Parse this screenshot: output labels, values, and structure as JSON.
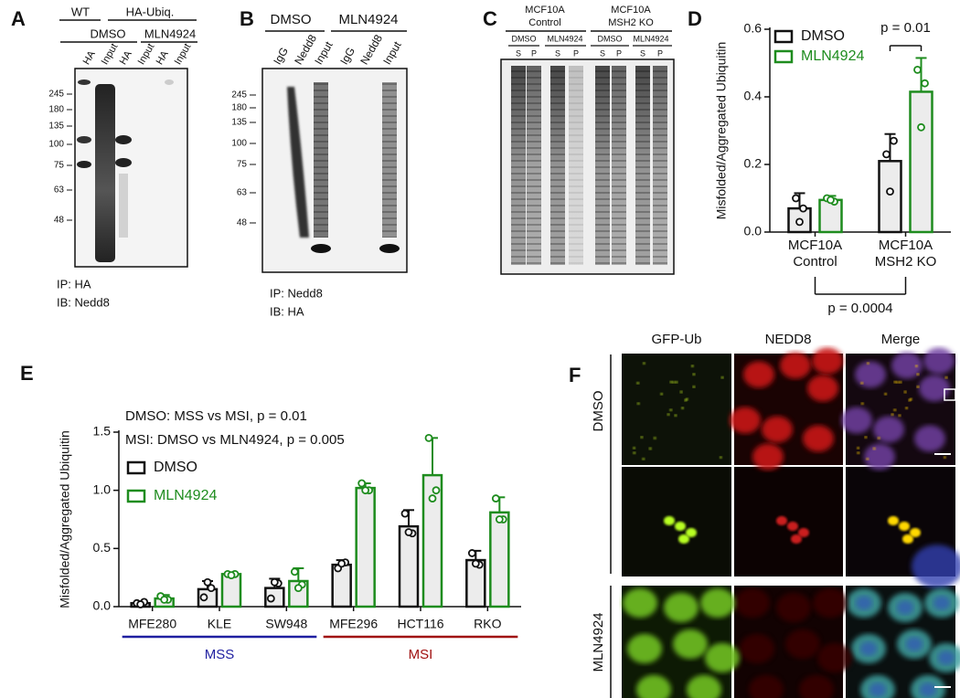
{
  "panels": {
    "letters": [
      "A",
      "B",
      "C",
      "D",
      "E",
      "F"
    ],
    "a": {
      "wt": "WT",
      "ha_ubiq": "HA-Ubiq.",
      "treatments": [
        "DMSO",
        "MLN4924"
      ],
      "lanes": [
        "HA",
        "Input",
        "HA",
        "Input",
        "HA",
        "Input"
      ],
      "markers": [
        "245",
        "180",
        "135",
        "100",
        "75",
        "63",
        "48"
      ],
      "ip": "IP: HA",
      "ib": "IB: Nedd8"
    },
    "b": {
      "treatments": [
        "DMSO",
        "MLN4924"
      ],
      "lanes": [
        "IgG",
        "Nedd8",
        "Input",
        "IgG",
        "Nedd8",
        "Input"
      ],
      "markers": [
        "245",
        "180",
        "135",
        "100",
        "75",
        "63",
        "48"
      ],
      "ip": "IP: Nedd8",
      "ib": "IB: HA"
    },
    "c": {
      "cell_lines": [
        [
          "MCF10A",
          "Control"
        ],
        [
          "MCF10A",
          "MSH2 KO"
        ]
      ],
      "treatments": [
        "DMSO",
        "MLN4924",
        "DMSO",
        "MLN4924"
      ],
      "fractions": [
        "S",
        "P",
        "S",
        "P",
        "S",
        "P",
        "S",
        "P"
      ]
    },
    "f": {
      "columns": [
        "GFP-Ub",
        "NEDD8",
        "Merge"
      ],
      "rows": [
        "DMSO",
        "MLN4924"
      ]
    }
  },
  "chart_data": [
    {
      "type": "bar",
      "ylabel": "Misfolded/Aggregated Ubiquitin",
      "categories": [
        "MCF10A Control",
        "MCF10A MSH2 KO"
      ],
      "series": [
        {
          "name": "DMSO",
          "color": "#111111",
          "values": [
            0.07,
            0.21
          ],
          "errors": [
            0.045,
            0.08
          ],
          "points": [
            [
              0.1,
              0.07,
              0.03
            ],
            [
              0.23,
              0.27,
              0.12
            ]
          ]
        },
        {
          "name": "MLN4924",
          "color": "#1e8c1e",
          "values": [
            0.095,
            0.415
          ],
          "errors": [
            0.012,
            0.1
          ],
          "points": [
            [
              0.1,
              0.09,
              0.095
            ],
            [
              0.48,
              0.44,
              0.31
            ]
          ]
        }
      ],
      "ylim": [
        0,
        0.6
      ],
      "yticks": [
        {
          "value": 0,
          "label": "0.0"
        },
        0.2,
        0.4,
        0.6
      ],
      "legend": "top-left",
      "annotations": [
        "p = 0.01",
        "p = 0.0004"
      ]
    },
    {
      "type": "bar",
      "ylabel": "Misfolded/Aggregated Ubiquitin",
      "categories": [
        "MFE280",
        "KLE",
        "SW948",
        "MFE296",
        "HCT116",
        "RKO"
      ],
      "series": [
        {
          "name": "DMSO",
          "color": "#111111",
          "values": [
            0.03,
            0.15,
            0.16,
            0.36,
            0.69,
            0.4
          ],
          "errors": [
            0.01,
            0.07,
            0.08,
            0.04,
            0.14,
            0.08
          ],
          "points": [
            [
              0.03,
              0.04,
              0.02
            ],
            [
              0.08,
              0.16,
              0.21
            ],
            [
              0.07,
              0.2,
              0.21
            ],
            [
              0.33,
              0.38,
              0.37
            ],
            [
              0.8,
              0.63,
              0.64
            ],
            [
              0.46,
              0.36,
              0.37
            ]
          ]
        },
        {
          "name": "MLN4924",
          "color": "#1e8c1e",
          "values": [
            0.07,
            0.28,
            0.22,
            1.02,
            1.13,
            0.81
          ],
          "errors": [
            0.03,
            0.01,
            0.11,
            0.04,
            0.32,
            0.13
          ],
          "points": [
            [
              0.09,
              0.06,
              0.06
            ],
            [
              0.28,
              0.28,
              0.27
            ],
            [
              0.3,
              0.19,
              0.16
            ],
            [
              1.06,
              1.0,
              1.0
            ],
            [
              1.45,
              1.0,
              0.93
            ],
            [
              0.93,
              0.75,
              0.75
            ]
          ]
        }
      ],
      "ylim": [
        0,
        1.5
      ],
      "yticks": [
        {
          "value": 0,
          "label": "0.0"
        },
        0.5,
        {
          "value": 1,
          "label": "1.0"
        },
        1.5
      ],
      "legend": "middle-left",
      "annotations": [
        "DMSO: MSS vs MSI, p = 0.01",
        "MSI: DMSO vs MLN4924, p = 0.005"
      ],
      "groups": [
        {
          "name": "MSS",
          "color": "#1f1fa0",
          "categories": [
            "MFE280",
            "KLE",
            "SW948"
          ]
        },
        {
          "name": "MSI",
          "color": "#a01010",
          "categories": [
            "MFE296",
            "HCT116",
            "RKO"
          ]
        }
      ]
    }
  ]
}
